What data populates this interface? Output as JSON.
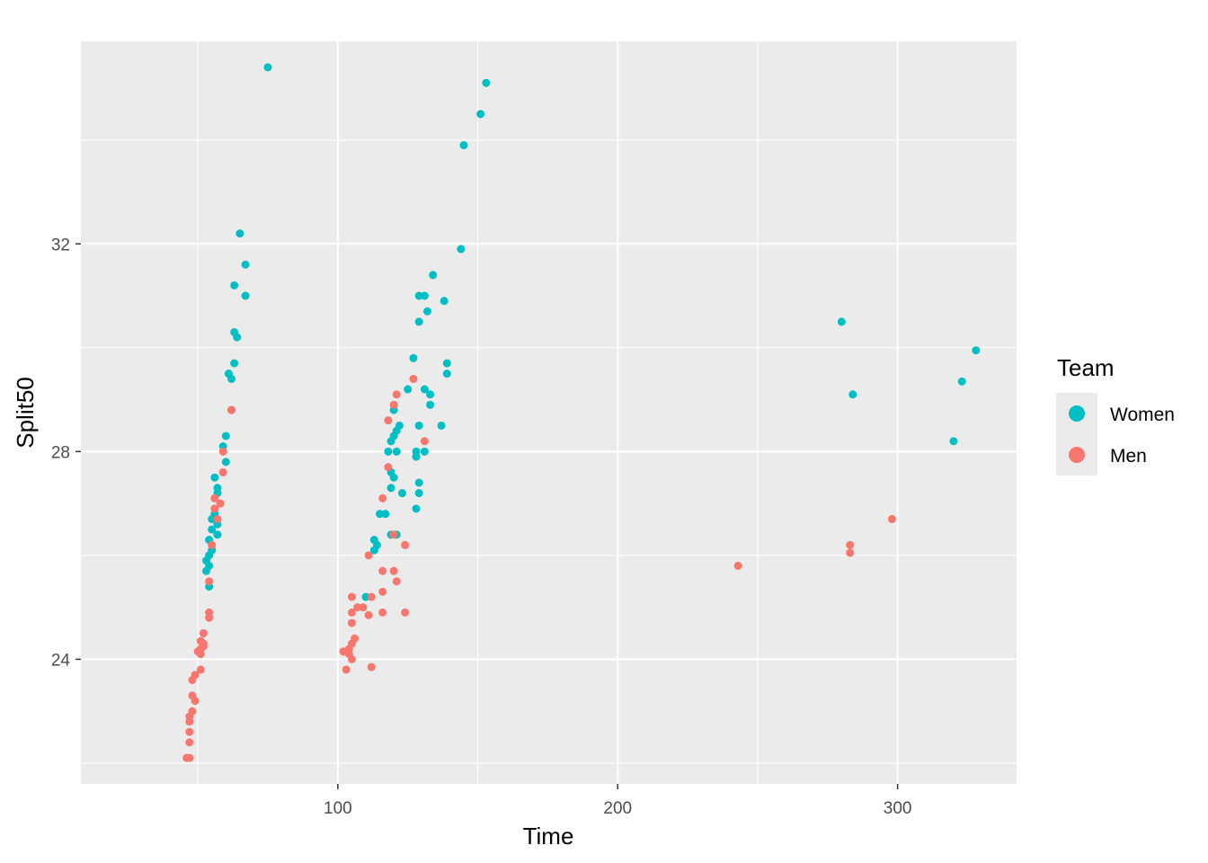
{
  "chart_data": {
    "type": "scatter",
    "xlabel": "Time",
    "ylabel": "Split50",
    "xlim": [
      8.2,
      342.5
    ],
    "ylim": [
      21.6,
      35.9
    ],
    "xticks": [
      100,
      200,
      300
    ],
    "yticks": [
      24,
      28,
      32
    ],
    "grid": true,
    "legend": {
      "title": "Team",
      "position": "right"
    },
    "series": [
      {
        "name": "Women",
        "color": "#00BFC4",
        "points": [
          [
            75,
            35.4
          ],
          [
            65,
            32.2
          ],
          [
            67,
            31.6
          ],
          [
            63,
            31.2
          ],
          [
            67,
            31.0
          ],
          [
            63,
            30.3
          ],
          [
            64,
            30.2
          ],
          [
            63,
            29.7
          ],
          [
            61,
            29.5
          ],
          [
            62,
            29.4
          ],
          [
            62,
            28.8
          ],
          [
            60,
            28.3
          ],
          [
            59,
            28.1
          ],
          [
            60,
            27.8
          ],
          [
            56,
            27.5
          ],
          [
            57,
            27.3
          ],
          [
            57,
            27.2
          ],
          [
            56,
            26.8
          ],
          [
            55,
            26.7
          ],
          [
            57,
            26.6
          ],
          [
            55,
            26.5
          ],
          [
            57,
            26.4
          ],
          [
            54,
            26.3
          ],
          [
            55,
            26.1
          ],
          [
            54,
            26.0
          ],
          [
            53,
            25.9
          ],
          [
            54,
            25.8
          ],
          [
            53,
            25.7
          ],
          [
            54,
            25.4
          ],
          [
            153,
            35.1
          ],
          [
            151,
            34.5
          ],
          [
            145,
            33.9
          ],
          [
            144,
            31.9
          ],
          [
            134,
            31.4
          ],
          [
            138,
            30.9
          ],
          [
            129,
            31.0
          ],
          [
            131,
            31.0
          ],
          [
            132,
            30.7
          ],
          [
            129,
            30.5
          ],
          [
            127,
            29.8
          ],
          [
            139,
            29.7
          ],
          [
            139,
            29.5
          ],
          [
            125,
            29.2
          ],
          [
            131,
            29.2
          ],
          [
            133,
            29.1
          ],
          [
            133,
            28.9
          ],
          [
            120,
            28.8
          ],
          [
            122,
            28.5
          ],
          [
            129,
            28.5
          ],
          [
            137,
            28.5
          ],
          [
            121,
            28.4
          ],
          [
            120,
            28.3
          ],
          [
            119,
            28.2
          ],
          [
            118,
            28.0
          ],
          [
            121,
            28.0
          ],
          [
            128,
            28.0
          ],
          [
            128,
            27.9
          ],
          [
            131,
            28.0
          ],
          [
            119,
            27.6
          ],
          [
            120,
            27.5
          ],
          [
            129,
            27.4
          ],
          [
            119,
            27.3
          ],
          [
            123,
            27.2
          ],
          [
            129,
            27.2
          ],
          [
            128,
            26.9
          ],
          [
            115,
            26.8
          ],
          [
            117,
            26.8
          ],
          [
            119,
            26.4
          ],
          [
            121,
            26.4
          ],
          [
            113,
            26.3
          ],
          [
            114,
            26.2
          ],
          [
            113,
            26.1
          ],
          [
            110,
            25.2
          ],
          [
            280,
            30.5
          ],
          [
            328,
            29.95
          ],
          [
            323,
            29.35
          ],
          [
            284,
            29.1
          ],
          [
            320,
            28.2
          ]
        ]
      },
      {
        "name": "Men",
        "color": "#F8766D",
        "points": [
          [
            62,
            28.8
          ],
          [
            59,
            28.0
          ],
          [
            59,
            27.6
          ],
          [
            56,
            27.1
          ],
          [
            58,
            27.0
          ],
          [
            56,
            26.9
          ],
          [
            57,
            26.7
          ],
          [
            55,
            26.2
          ],
          [
            54,
            25.5
          ],
          [
            54,
            24.9
          ],
          [
            54,
            24.8
          ],
          [
            52,
            24.5
          ],
          [
            51,
            24.35
          ],
          [
            52,
            24.3
          ],
          [
            52,
            24.25
          ],
          [
            51,
            24.2
          ],
          [
            50,
            24.15
          ],
          [
            51,
            24.1
          ],
          [
            51,
            23.8
          ],
          [
            49,
            23.7
          ],
          [
            48,
            23.6
          ],
          [
            48,
            23.3
          ],
          [
            49,
            23.2
          ],
          [
            48,
            23.0
          ],
          [
            47,
            22.9
          ],
          [
            47,
            22.8
          ],
          [
            47,
            22.6
          ],
          [
            47,
            22.4
          ],
          [
            46,
            22.1
          ],
          [
            47,
            22.1
          ],
          [
            127,
            29.4
          ],
          [
            121,
            29.1
          ],
          [
            120,
            28.9
          ],
          [
            118,
            28.6
          ],
          [
            131,
            28.2
          ],
          [
            118,
            27.7
          ],
          [
            116,
            27.1
          ],
          [
            120,
            26.4
          ],
          [
            124,
            26.2
          ],
          [
            111,
            26.0
          ],
          [
            116,
            25.7
          ],
          [
            120,
            25.7
          ],
          [
            121,
            25.5
          ],
          [
            105,
            25.2
          ],
          [
            112,
            25.2
          ],
          [
            116,
            25.3
          ],
          [
            107,
            25.0
          ],
          [
            109,
            25.0
          ],
          [
            105,
            24.9
          ],
          [
            111,
            24.85
          ],
          [
            116,
            24.9
          ],
          [
            124,
            24.9
          ],
          [
            105,
            24.7
          ],
          [
            106,
            24.4
          ],
          [
            105,
            24.3
          ],
          [
            104,
            24.2
          ],
          [
            102,
            24.15
          ],
          [
            104,
            24.1
          ],
          [
            105,
            24.0
          ],
          [
            103,
            23.8
          ],
          [
            112,
            23.85
          ],
          [
            243,
            25.8
          ],
          [
            298,
            26.7
          ],
          [
            283,
            26.2
          ],
          [
            283,
            26.05
          ]
        ]
      }
    ]
  }
}
